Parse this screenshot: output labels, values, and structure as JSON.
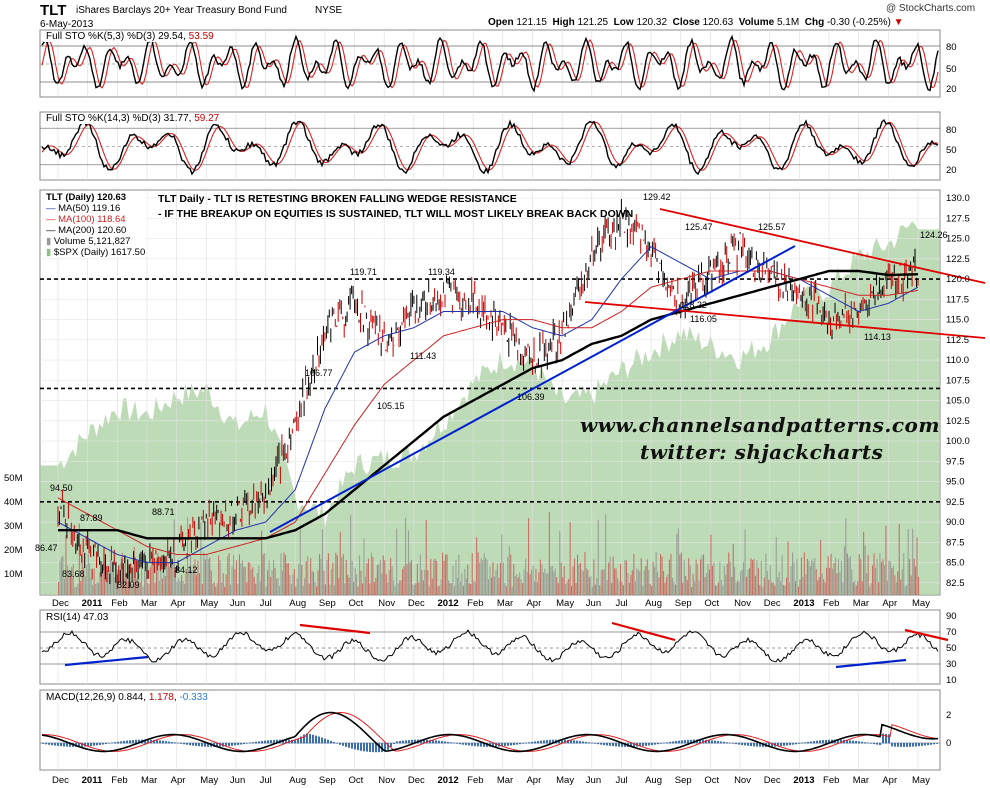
{
  "header": {
    "symbol": "TLT",
    "name": "iShares Barclays 20+ Year Treasury Bond Fund",
    "exchange": "NYSE",
    "date": "6-May-2013",
    "brand": "@ StockCharts.com",
    "open_label": "Open",
    "open": "121.15",
    "high_label": "High",
    "high": "121.25",
    "low_label": "Low",
    "low": "120.32",
    "close_label": "Close",
    "close": "120.63",
    "volume_label": "Volume",
    "volume": "5.1M",
    "chg_label": "Chg",
    "chg": "-0.30 (-0.25%)",
    "chg_arrow": "▼"
  },
  "sto_fast": {
    "label": "Full STO %K(5,3) %D(3)",
    "k": "29.54",
    "d": "53.59",
    "levels": [
      "80",
      "50",
      "20"
    ]
  },
  "sto_slow": {
    "label": "Full STO %K(14,3) %D(3)",
    "k": "31.77",
    "d": "59.27",
    "levels": [
      "80",
      "50",
      "20"
    ]
  },
  "legend": {
    "main": "TLT (Daily) 120.63",
    "ma50": "MA(50) 119.16",
    "ma100": "MA(100) 118.64",
    "ma200": "MA(200) 120.60",
    "volume": "Volume 5,121,827",
    "spx": "$SPX (Daily) 1617.50"
  },
  "annotations": {
    "line1": "TLT Daily - TLT IS RETESTING BROKEN FALLING WEDGE RESISTANCE",
    "line2": "- IF THE BREAKUP ON EQUITIES IS SUSTAINED, TLT WILL MOST LIKELY BREAK BACK DOWN",
    "site": "www.channelsandpatterns.com",
    "twitter": "twitter: shjackcharts"
  },
  "price_labels": [
    {
      "text": "94.50"
    },
    {
      "text": "87.89"
    },
    {
      "text": "86.47"
    },
    {
      "text": "83.68"
    },
    {
      "text": "82.09"
    },
    {
      "text": "88.71"
    },
    {
      "text": "84.12"
    },
    {
      "text": "106.77"
    },
    {
      "text": "119.71"
    },
    {
      "text": "105.15"
    },
    {
      "text": "111.43"
    },
    {
      "text": "119.34"
    },
    {
      "text": "106.39"
    },
    {
      "text": "129.42"
    },
    {
      "text": "125.47"
    },
    {
      "text": "118.22"
    },
    {
      "text": "116.05"
    },
    {
      "text": "125.57"
    },
    {
      "text": "114.13"
    },
    {
      "text": "124.26"
    }
  ],
  "price_axis": [
    "130.0",
    "127.5",
    "125.0",
    "122.5",
    "120.0",
    "117.5",
    "115.0",
    "112.5",
    "110.0",
    "107.5",
    "105.0",
    "102.5",
    "100.0",
    "97.5",
    "95.0",
    "92.5",
    "90.0",
    "87.5",
    "85.0",
    "82.5"
  ],
  "volume_axis": [
    "50M",
    "40M",
    "30M",
    "20M",
    "10M"
  ],
  "time_axis": [
    "Dec",
    "2011",
    "Feb",
    "Mar",
    "Apr",
    "May",
    "Jun",
    "Jul",
    "Aug",
    "Sep",
    "Oct",
    "Nov",
    "Dec",
    "2012",
    "Feb",
    "Mar",
    "Apr",
    "May",
    "Jun",
    "Jul",
    "Aug",
    "Sep",
    "Oct",
    "Nov",
    "Dec",
    "2013",
    "Feb",
    "Mar",
    "Apr",
    "May"
  ],
  "rsi": {
    "label": "RSI(14)",
    "value": "47.03",
    "levels": [
      "90",
      "70",
      "50",
      "30",
      "10"
    ]
  },
  "macd": {
    "label": "MACD(12,26,9)",
    "macd": "0.844",
    "signal": "1.178",
    "hist": "-0.333",
    "levels": [
      "2",
      "0"
    ]
  },
  "colors": {
    "price_up": "#000000",
    "price_down": "#cc0000",
    "ma50": "#2233aa",
    "ma100": "#cc2222",
    "ma200": "#000000",
    "spx_fill": "#a8cfa0",
    "trend_red": "#e00000",
    "trend_blue": "#0022cc",
    "macd_hist": "#3a6fb0"
  },
  "chart_data": {
    "type": "line",
    "x": [
      "Dec-2010",
      "Jan-2011",
      "Feb-2011",
      "Mar-2011",
      "Apr-2011",
      "May-2011",
      "Jun-2011",
      "Jul-2011",
      "Aug-2011",
      "Sep-2011",
      "Oct-2011",
      "Nov-2011",
      "Dec-2011",
      "Jan-2012",
      "Feb-2012",
      "Mar-2012",
      "Apr-2012",
      "May-2012",
      "Jun-2012",
      "Jul-2012",
      "Aug-2012",
      "Sep-2012",
      "Oct-2012",
      "Nov-2012",
      "Dec-2012",
      "Jan-2013",
      "Feb-2013",
      "Mar-2013",
      "Apr-2013",
      "May-2013"
    ],
    "series": [
      {
        "name": "TLT (Daily)",
        "values": [
          92,
          86,
          84,
          85,
          86,
          90,
          91,
          93,
          102,
          114,
          117,
          112,
          116,
          118,
          117,
          114,
          110,
          113,
          123,
          127,
          124,
          117,
          121,
          124,
          120,
          119,
          115,
          116,
          120,
          121
        ]
      },
      {
        "name": "MA(50)",
        "values": [
          90,
          88,
          86,
          85,
          85,
          87,
          89,
          90,
          94,
          104,
          111,
          113,
          114,
          116,
          116,
          116,
          114,
          113,
          115,
          120,
          124,
          122,
          120,
          121,
          121,
          120,
          118,
          116,
          117,
          119
        ]
      },
      {
        "name": "MA(100)",
        "values": [
          93,
          91,
          89,
          87,
          86,
          86,
          87,
          88,
          90,
          96,
          102,
          107,
          110,
          113,
          114,
          115,
          115,
          114,
          114,
          116,
          119,
          120,
          121,
          121,
          121,
          120,
          119,
          118,
          118,
          118.6
        ]
      },
      {
        "name": "MA(200)",
        "values": [
          89,
          89,
          89,
          88,
          88,
          88,
          88,
          88,
          89,
          91,
          94,
          97,
          100,
          103,
          105,
          107,
          109,
          110,
          112,
          113,
          115,
          116,
          117,
          118,
          119,
          120,
          121,
          121,
          120.5,
          120.6
        ]
      }
    ],
    "ylim": [
      81,
      131
    ],
    "grid": true,
    "legend_position": "top-left"
  }
}
